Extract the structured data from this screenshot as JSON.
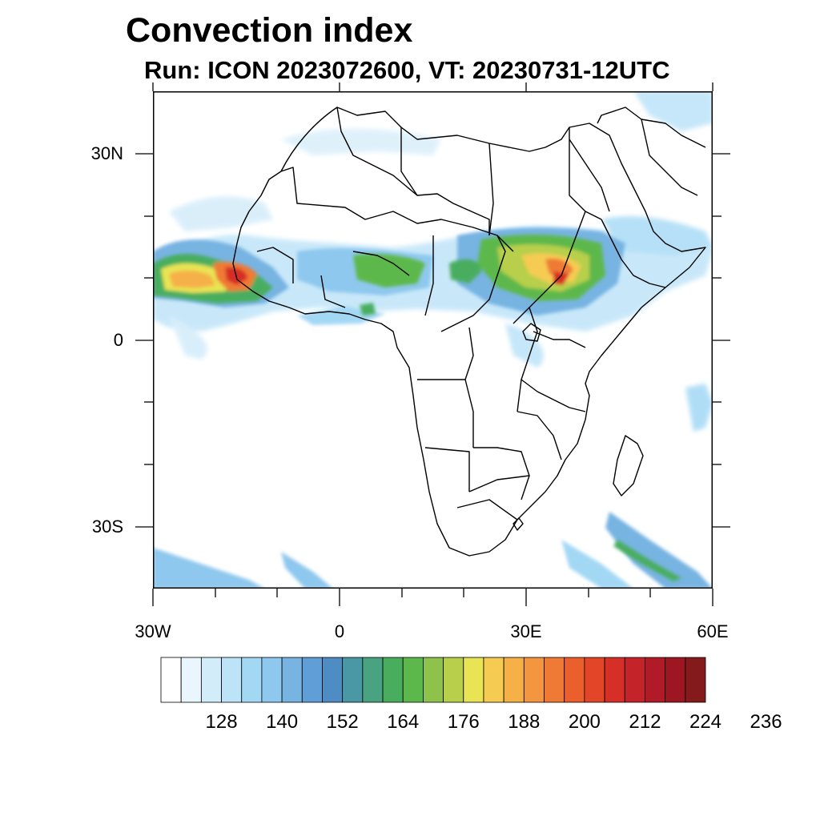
{
  "title": "Convection index",
  "subtitle": "Run: ICON 2023072600,  VT: 20230731-12UTC",
  "axes": {
    "lat_labels": [
      "30N",
      "0",
      "30S"
    ],
    "lon_labels": [
      "30W",
      "0",
      "30E",
      "60E"
    ]
  },
  "colorbar": {
    "colors": [
      "#ffffff",
      "#eaf6fd",
      "#d2ecfa",
      "#bce3f8",
      "#a3d8f5",
      "#8ec8ee",
      "#77b4e2",
      "#5f9ed6",
      "#4e8cc4",
      "#4a98a6",
      "#4aa380",
      "#49ad5e",
      "#5db84b",
      "#8ec24a",
      "#b8cf4c",
      "#e8e453",
      "#f6cb52",
      "#f6b048",
      "#f49640",
      "#ef7a35",
      "#ea5f2c",
      "#e24527",
      "#d62f28",
      "#c42329",
      "#b11b27",
      "#9d1621",
      "#851a1c"
    ],
    "tick_labels": [
      "128",
      "140",
      "152",
      "164",
      "176",
      "188",
      "200",
      "212",
      "224",
      "236"
    ]
  }
}
